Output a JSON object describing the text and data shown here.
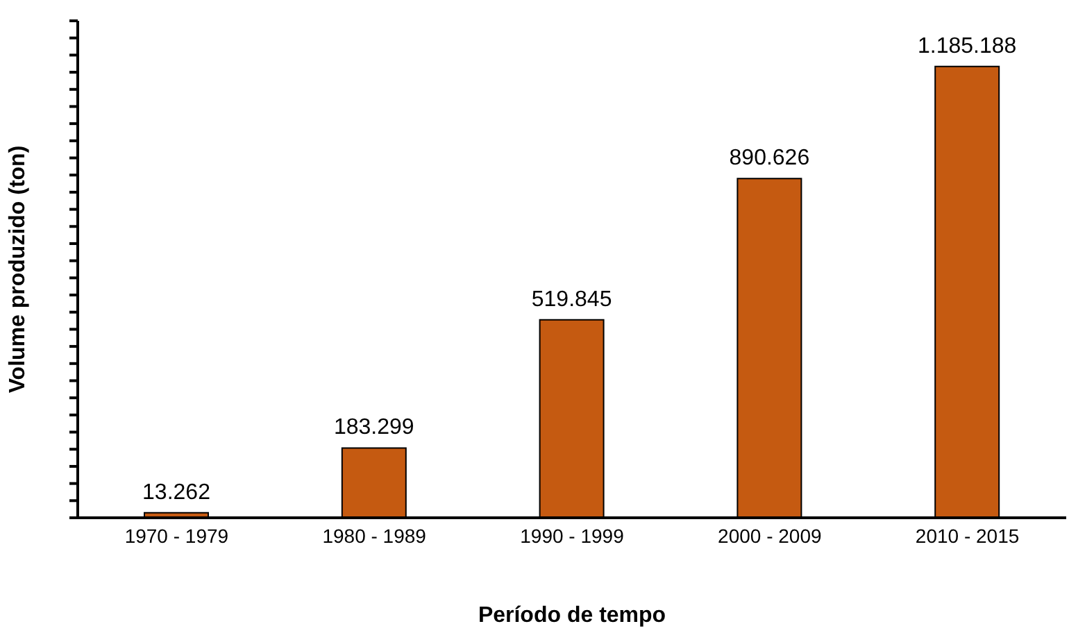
{
  "chart_data": {
    "type": "bar",
    "xlabel": "Período de tempo",
    "ylabel": "Volume produzido (ton)",
    "categories": [
      "1970 - 1979",
      "1980 - 1989",
      "1990 - 1999",
      "2000 - 2009",
      "2010 - 2015"
    ],
    "values": [
      13262,
      183299,
      519845,
      890626,
      1185188
    ],
    "value_labels": [
      "13.262",
      "183.299",
      "519.845",
      "890.626",
      "1.185.188"
    ],
    "color": "#c55a11",
    "tick_labels": "x",
    "grid": false
  }
}
